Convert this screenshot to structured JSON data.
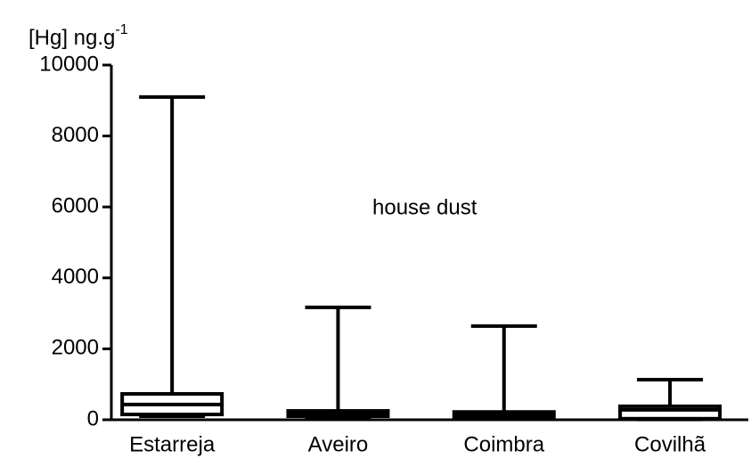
{
  "chart_data": {
    "type": "box",
    "ylabel": "[Hg] ng.g",
    "ylabel_superscript": "-1",
    "annotation": "house dust",
    "categories": [
      "Estarreja",
      "Aveiro",
      "Coimbra",
      "Covilhã"
    ],
    "min": [
      100,
      80,
      60,
      10
    ],
    "q1": [
      150,
      100,
      80,
      30
    ],
    "median": [
      430,
      180,
      150,
      280
    ],
    "q3": [
      730,
      250,
      220,
      380
    ],
    "max": [
      9100,
      3170,
      2640,
      1130
    ],
    "color": "#000000",
    "ylim": [
      0,
      10000
    ],
    "yticks": [
      0,
      2000,
      4000,
      6000,
      8000,
      10000
    ]
  }
}
